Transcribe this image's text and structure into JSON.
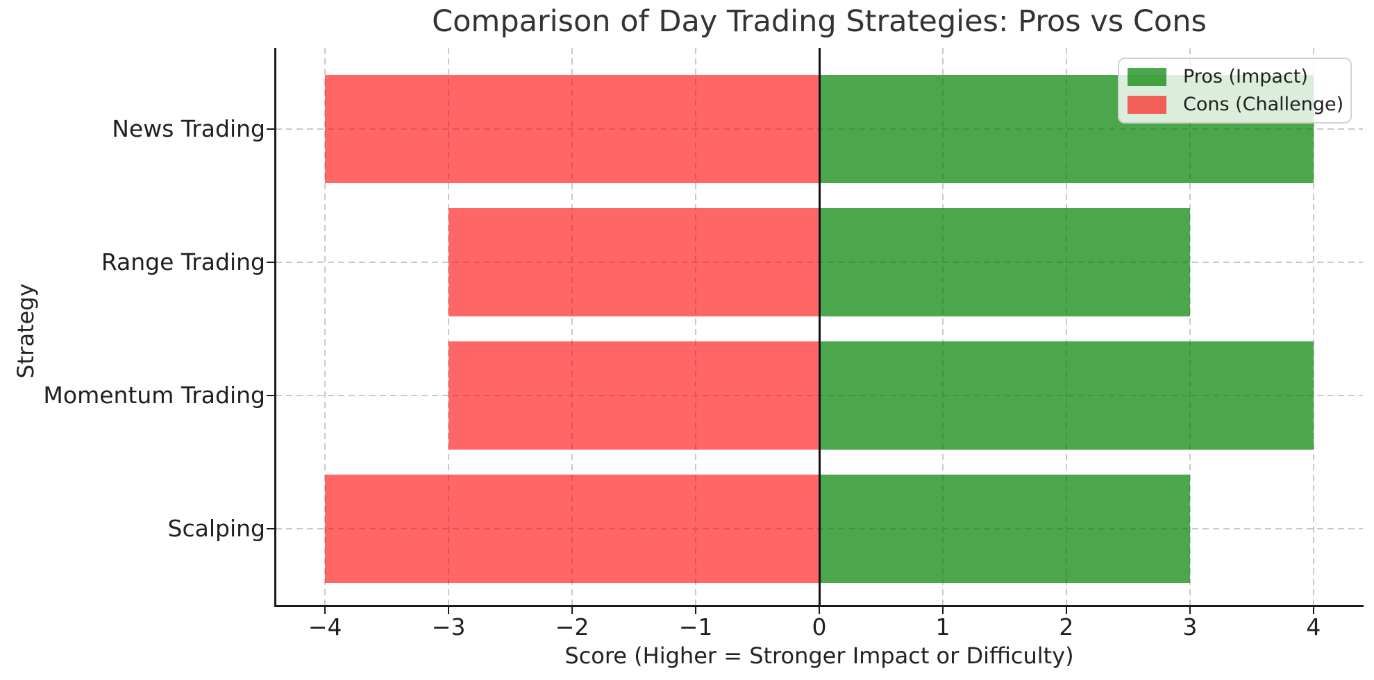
{
  "chart_data": {
    "type": "bar",
    "orientation": "horizontal",
    "title": "Comparison of Day Trading Strategies: Pros vs Cons",
    "xlabel": "Score (Higher = Stronger Impact or Difficulty)",
    "ylabel": "Strategy",
    "categories": [
      "News Trading",
      "Range Trading",
      "Momentum Trading",
      "Scalping"
    ],
    "series": [
      {
        "name": "Pros (Impact)",
        "values": [
          4,
          3,
          4,
          3
        ],
        "color": "rgba(0,128,0,0.7)",
        "color_hex": "#4da64d"
      },
      {
        "name": "Cons (Challenge)",
        "values": [
          -4,
          -3,
          -3,
          -4
        ],
        "color": "rgba(255,0,0,0.6)",
        "color_hex": "#ff6666"
      }
    ],
    "xticks": [
      -4,
      -3,
      -2,
      -1,
      0,
      1,
      2,
      3,
      4
    ],
    "xtick_labels": [
      "−4",
      "−3",
      "−2",
      "−1",
      "0",
      "1",
      "2",
      "3",
      "4"
    ],
    "xlim": [
      -4.4,
      4.4
    ],
    "grid": "dashed",
    "zero_line": true,
    "legend_position": "upper right",
    "legend_entries": [
      "Pros (Impact)",
      "Cons (Challenge)"
    ],
    "bar_height_ratio": 0.8
  },
  "colors": {
    "grid": "#c9c9c9",
    "axis": "#1a1a1a",
    "zero_line": "#111111",
    "title_text": "#333333",
    "label_text": "#222222",
    "tick_text": "#1f1f1f"
  }
}
